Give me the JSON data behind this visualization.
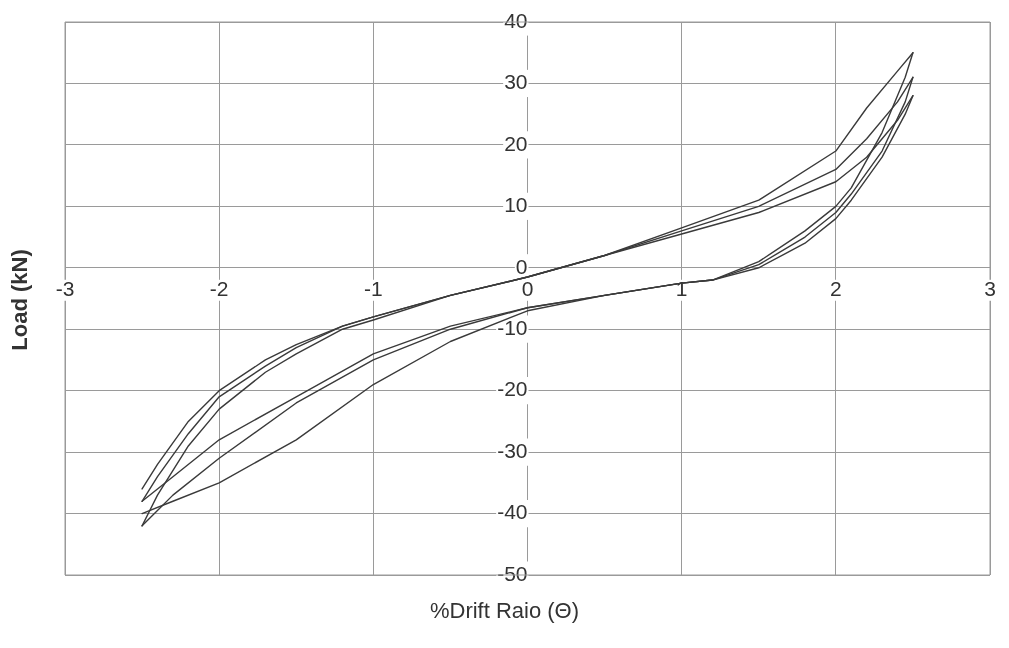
{
  "chart_data": {
    "type": "line",
    "xlabel": "%Drift Raio (Θ)",
    "ylabel": "Load (kN)",
    "xlim": [
      -3,
      3
    ],
    "ylim": [
      -50,
      40
    ],
    "xticks": [
      -3,
      -2,
      -1,
      0,
      1,
      2,
      3
    ],
    "yticks": [
      -50,
      -40,
      -30,
      -20,
      -10,
      0,
      10,
      20,
      30,
      40
    ],
    "grid": true,
    "legend": false,
    "marker": "none",
    "line_style": "solid",
    "series": [
      {
        "color": "#3a3a3a",
        "x": [
          -2.5,
          -2.4,
          -2.2,
          -2,
          -1.7,
          -1.5,
          -1.2,
          -1,
          -0.5,
          0,
          0.5,
          1,
          1.5,
          2,
          2.2,
          2.4,
          2.5
        ],
        "values": [
          -36,
          -32,
          -25,
          -20,
          -15,
          -12.5,
          -9.5,
          -8,
          -4.5,
          -1.5,
          2,
          5.5,
          9,
          14,
          18,
          24,
          28
        ]
      },
      {
        "color": "#3a3a3a",
        "x": [
          -2.5,
          -2.3,
          -2,
          -1.5,
          -1,
          -0.5,
          0,
          0.5,
          1,
          1.2,
          1.5,
          1.8,
          2,
          2.1,
          2.3,
          2.45,
          2.5
        ],
        "values": [
          -38,
          -34,
          -28,
          -21,
          -14,
          -9.5,
          -6.5,
          -4.5,
          -2.5,
          -2,
          0,
          4,
          8,
          11,
          18,
          25,
          28
        ]
      },
      {
        "color": "#3a3a3a",
        "x": [
          -2.5,
          -2.4,
          -2.2,
          -2,
          -1.7,
          -1.5,
          -1.2,
          -1,
          -0.5,
          0,
          0.5,
          1,
          1.5,
          2,
          2.2,
          2.4,
          2.5
        ],
        "values": [
          -38,
          -34,
          -27,
          -21,
          -16,
          -13,
          -9.5,
          -8,
          -4.5,
          -1.5,
          2,
          6,
          10,
          16,
          21,
          27,
          31
        ]
      },
      {
        "color": "#3a3a3a",
        "x": [
          -2.5,
          -2.3,
          -2,
          -1.5,
          -1,
          -0.5,
          0,
          0.5,
          1,
          1.2,
          1.5,
          1.8,
          2,
          2.1,
          2.3,
          2.45,
          2.5
        ],
        "values": [
          -42,
          -37,
          -31,
          -22,
          -15,
          -10,
          -6.5,
          -4.5,
          -2.5,
          -2,
          0.5,
          5,
          9,
          12,
          19,
          27,
          31
        ]
      },
      {
        "color": "#3a3a3a",
        "x": [
          -2.5,
          -2.4,
          -2.2,
          -2,
          -1.7,
          -1.5,
          -1.2,
          -1,
          -0.5,
          0,
          0.5,
          1,
          1.5,
          2,
          2.2,
          2.4,
          2.5
        ],
        "values": [
          -42,
          -37,
          -29,
          -23,
          -17,
          -14,
          -10,
          -8.5,
          -4.5,
          -1.5,
          2,
          6.5,
          11,
          19,
          26,
          32,
          35
        ]
      },
      {
        "color": "#3a3a3a",
        "x": [
          -2.5,
          -2.3,
          -2,
          -1.5,
          -1,
          -0.5,
          0,
          0.5,
          1,
          1.2,
          1.5,
          1.8,
          2,
          2.1,
          2.3,
          2.45,
          2.5
        ],
        "values": [
          -40,
          -38,
          -35,
          -28,
          -19,
          -12,
          -7,
          -4.5,
          -2.5,
          -2,
          1,
          6,
          10,
          13,
          22,
          31,
          35
        ]
      }
    ]
  }
}
